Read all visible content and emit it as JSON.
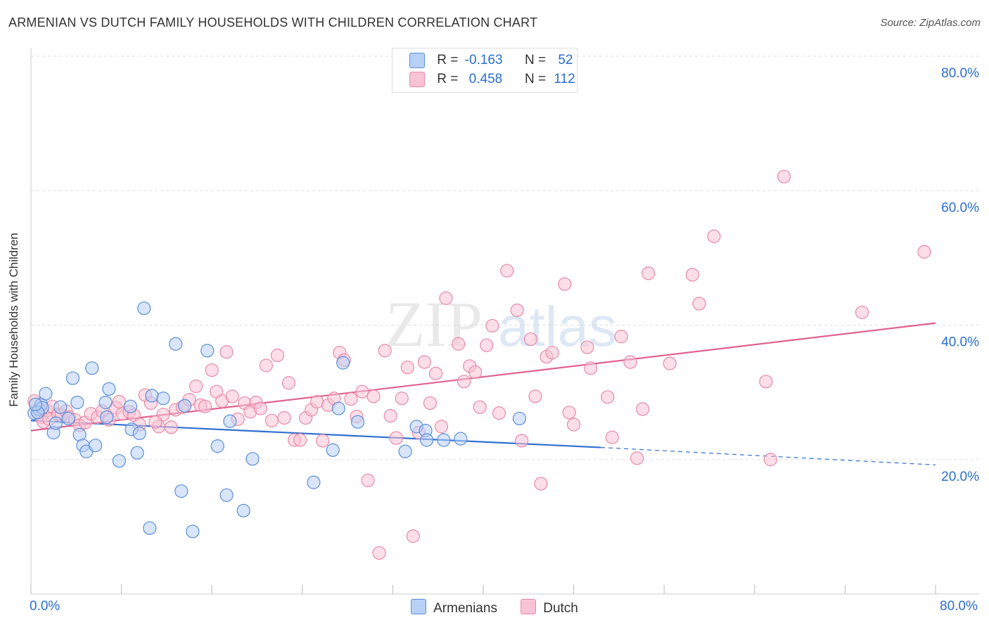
{
  "title": "ARMENIAN VS DUTCH FAMILY HOUSEHOLDS WITH CHILDREN CORRELATION CHART",
  "source": "Source: ZipAtlas.com",
  "watermark": {
    "zip": "ZIP",
    "atlas": "atlas"
  },
  "legend": {
    "armenians": {
      "r_label": "R =",
      "r_value": "-0.163",
      "n_label": "N =",
      "n_value": "52"
    },
    "dutch": {
      "r_label": "R =",
      "r_value": "0.458",
      "n_label": "N =",
      "n_value": "112"
    }
  },
  "colors": {
    "armenian_fill": "#b8d0f5",
    "armenian_stroke": "#5b8fd8",
    "armenian_line": "#2f6fcf",
    "dutch_fill": "#f8c3d4",
    "dutch_stroke": "#e88aa8",
    "dutch_line": "#e0628e",
    "axis_label": "#2a6ed1",
    "grid": "#dddddd"
  },
  "chart_data": {
    "type": "scatter",
    "title": "ARMENIAN VS DUTCH FAMILY HOUSEHOLDS WITH CHILDREN CORRELATION CHART",
    "ylabel": "Family Households with Children",
    "xlim": [
      0,
      80
    ],
    "ylim": [
      0,
      80
    ],
    "x_tick_labels": [
      "0.0%",
      "80.0%"
    ],
    "y_ticks": [
      {
        "value": 80,
        "label": "80.0%"
      },
      {
        "value": 60,
        "label": "60.0%"
      },
      {
        "value": 40,
        "label": "40.0%"
      },
      {
        "value": 20,
        "label": "20.0%"
      }
    ],
    "series": [
      {
        "name": "Armenians",
        "r": -0.163,
        "n": 52,
        "trend": {
          "x0": 0,
          "y0": 25.8,
          "x1": 50.4,
          "y1": 21.8,
          "dash_to_x": 80,
          "dash_to_y": 19.2
        },
        "points": [
          [
            0.3,
            26.9
          ],
          [
            0.7,
            27.5
          ],
          [
            0.9,
            28.2
          ],
          [
            1.3,
            29.8
          ],
          [
            2.0,
            24.0
          ],
          [
            2.2,
            25.4
          ],
          [
            2.6,
            27.8
          ],
          [
            3.3,
            26.1
          ],
          [
            3.7,
            32.1
          ],
          [
            4.3,
            23.7
          ],
          [
            4.1,
            28.5
          ],
          [
            4.6,
            22.1
          ],
          [
            4.9,
            21.2
          ],
          [
            5.4,
            33.6
          ],
          [
            5.7,
            22.1
          ],
          [
            6.9,
            30.5
          ],
          [
            6.6,
            28.5
          ],
          [
            6.7,
            26.3
          ],
          [
            7.8,
            19.8
          ],
          [
            8.8,
            27.9
          ],
          [
            8.9,
            24.5
          ],
          [
            9.4,
            21.0
          ],
          [
            9.6,
            23.9
          ],
          [
            10.0,
            42.5
          ],
          [
            10.5,
            9.8
          ],
          [
            10.7,
            29.5
          ],
          [
            11.7,
            29.1
          ],
          [
            12.8,
            37.2
          ],
          [
            13.3,
            15.3
          ],
          [
            13.6,
            28.0
          ],
          [
            14.3,
            9.3
          ],
          [
            15.6,
            36.2
          ],
          [
            16.5,
            22.0
          ],
          [
            17.3,
            14.7
          ],
          [
            17.6,
            25.7
          ],
          [
            18.8,
            12.4
          ],
          [
            19.6,
            20.1
          ],
          [
            25.0,
            16.6
          ],
          [
            26.7,
            21.4
          ],
          [
            27.2,
            27.6
          ],
          [
            27.6,
            34.4
          ],
          [
            28.9,
            25.6
          ],
          [
            33.1,
            21.2
          ],
          [
            34.1,
            24.9
          ],
          [
            34.9,
            24.3
          ],
          [
            35.0,
            22.9
          ],
          [
            36.5,
            22.9
          ],
          [
            38.0,
            23.1
          ],
          [
            43.2,
            26.1
          ],
          [
            1.0,
            27.7
          ],
          [
            0.6,
            27.0
          ],
          [
            0.4,
            28.2
          ]
        ]
      },
      {
        "name": "Dutch",
        "r": 0.458,
        "n": 112,
        "trend": {
          "x0": 0,
          "y0": 24.3,
          "x1": 80,
          "y1": 40.3
        },
        "points": [
          [
            0.3,
            28.7
          ],
          [
            0.6,
            27.1
          ],
          [
            0.9,
            26.3
          ],
          [
            1.1,
            25.6
          ],
          [
            1.4,
            27.3
          ],
          [
            1.6,
            26.0
          ],
          [
            1.9,
            27.9
          ],
          [
            2.4,
            26.7
          ],
          [
            2.7,
            26.6
          ],
          [
            3.1,
            27.2
          ],
          [
            3.4,
            26.3
          ],
          [
            3.9,
            25.9
          ],
          [
            4.3,
            25.1
          ],
          [
            4.8,
            25.5
          ],
          [
            5.3,
            26.8
          ],
          [
            5.9,
            26.3
          ],
          [
            6.3,
            27.2
          ],
          [
            6.9,
            25.9
          ],
          [
            7.5,
            27.7
          ],
          [
            7.8,
            28.6
          ],
          [
            8.1,
            26.8
          ],
          [
            8.7,
            27.1
          ],
          [
            9.1,
            26.6
          ],
          [
            9.6,
            25.2
          ],
          [
            10.1,
            29.6
          ],
          [
            10.6,
            28.4
          ],
          [
            11.3,
            24.9
          ],
          [
            11.7,
            26.7
          ],
          [
            12.4,
            24.8
          ],
          [
            12.8,
            27.4
          ],
          [
            13.4,
            27.8
          ],
          [
            14.0,
            28.9
          ],
          [
            14.6,
            30.9
          ],
          [
            15.0,
            28.1
          ],
          [
            15.4,
            27.9
          ],
          [
            16.0,
            33.3
          ],
          [
            16.4,
            30.1
          ],
          [
            16.9,
            28.7
          ],
          [
            17.3,
            36.0
          ],
          [
            17.8,
            29.4
          ],
          [
            18.3,
            26.0
          ],
          [
            18.9,
            28.4
          ],
          [
            19.4,
            27.1
          ],
          [
            19.9,
            28.5
          ],
          [
            20.3,
            27.6
          ],
          [
            20.8,
            34.0
          ],
          [
            21.3,
            25.8
          ],
          [
            21.8,
            35.5
          ],
          [
            22.4,
            26.2
          ],
          [
            22.8,
            31.4
          ],
          [
            23.3,
            22.9
          ],
          [
            23.8,
            22.9
          ],
          [
            24.3,
            26.2
          ],
          [
            24.8,
            27.4
          ],
          [
            25.3,
            28.6
          ],
          [
            25.8,
            22.8
          ],
          [
            26.3,
            28.1
          ],
          [
            26.8,
            29.1
          ],
          [
            27.3,
            35.9
          ],
          [
            27.7,
            34.8
          ],
          [
            28.3,
            29.0
          ],
          [
            28.8,
            26.4
          ],
          [
            29.3,
            30.1
          ],
          [
            29.8,
            16.9
          ],
          [
            30.3,
            29.4
          ],
          [
            30.8,
            6.1
          ],
          [
            31.3,
            36.2
          ],
          [
            31.8,
            26.5
          ],
          [
            32.3,
            23.2
          ],
          [
            32.8,
            29.1
          ],
          [
            33.3,
            33.7
          ],
          [
            33.8,
            8.6
          ],
          [
            34.3,
            24.0
          ],
          [
            34.8,
            34.5
          ],
          [
            35.3,
            28.4
          ],
          [
            35.8,
            32.8
          ],
          [
            36.3,
            24.9
          ],
          [
            36.7,
            44.0
          ],
          [
            37.8,
            37.2
          ],
          [
            38.3,
            31.6
          ],
          [
            38.8,
            33.9
          ],
          [
            39.3,
            33.0
          ],
          [
            39.7,
            27.8
          ],
          [
            40.3,
            37.0
          ],
          [
            40.8,
            39.9
          ],
          [
            41.4,
            26.9
          ],
          [
            42.1,
            48.1
          ],
          [
            43.0,
            42.2
          ],
          [
            43.4,
            22.8
          ],
          [
            44.2,
            37.9
          ],
          [
            44.6,
            29.4
          ],
          [
            45.1,
            16.4
          ],
          [
            45.6,
            35.3
          ],
          [
            46.1,
            35.9
          ],
          [
            47.2,
            46.1
          ],
          [
            47.6,
            27.0
          ],
          [
            48.0,
            25.2
          ],
          [
            49.2,
            36.7
          ],
          [
            49.5,
            33.6
          ],
          [
            51.0,
            29.3
          ],
          [
            51.4,
            23.3
          ],
          [
            52.2,
            38.3
          ],
          [
            53.0,
            34.5
          ],
          [
            53.6,
            20.2
          ],
          [
            54.1,
            27.5
          ],
          [
            54.6,
            47.7
          ],
          [
            56.5,
            34.3
          ],
          [
            58.5,
            47.5
          ],
          [
            59.1,
            43.2
          ],
          [
            60.4,
            53.2
          ],
          [
            65.0,
            31.6
          ],
          [
            65.4,
            20.0
          ],
          [
            66.6,
            62.1
          ],
          [
            73.5,
            41.9
          ],
          [
            79.0,
            50.9
          ],
          [
            11.0,
            25.6
          ]
        ]
      }
    ]
  },
  "bottom_legend": {
    "armenians": "Armenians",
    "dutch": "Dutch"
  }
}
